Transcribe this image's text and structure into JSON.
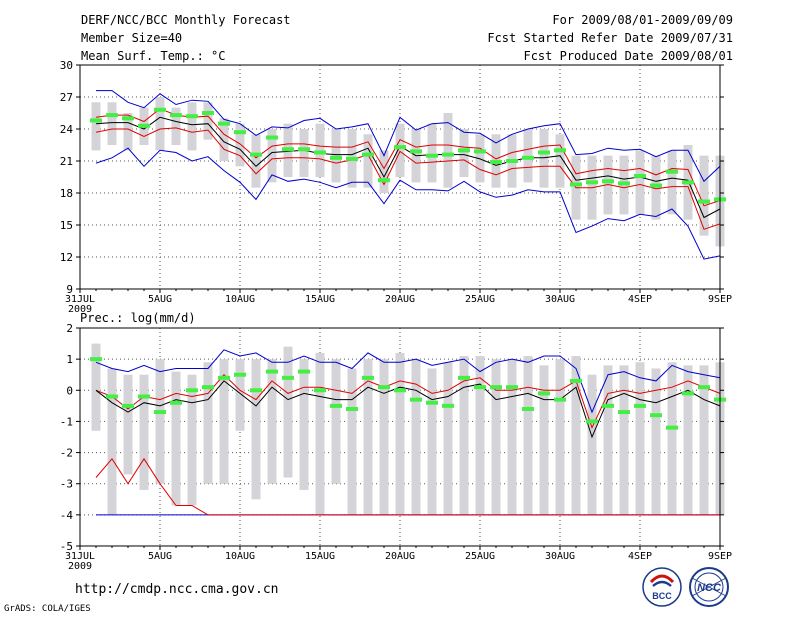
{
  "header": {
    "title": "DERF/NCC/BCC Monthly Forecast",
    "member_size": "Member Size=40",
    "variable": "Mean Surf. Temp.: °C",
    "period": "For 2009/08/01-2009/09/09",
    "started": "Fcst Started Refer Date 2009/07/31",
    "produced": "Fcst Produced Date 2009/08/01"
  },
  "footer": {
    "url": "http://cmdp.ncc.cma.gov.cn",
    "credit": "GrADS: COLA/IGES",
    "logo_bcc": "BCC",
    "logo_ncc": "NCC"
  },
  "colors": {
    "box": "#d4d4d8",
    "mean": "#000000",
    "spread": "#e00000",
    "extreme": "#0000cc",
    "obs": "#44ee44",
    "grid": "#555555"
  },
  "chart_data": [
    {
      "type": "line",
      "name": "temperature",
      "title": "",
      "ylabel": "Mean Surf. Temp.: °C",
      "ylim": [
        9,
        30
      ],
      "yticks": [
        9,
        12,
        15,
        18,
        21,
        24,
        27,
        30
      ],
      "xlim": [
        0,
        40
      ],
      "xticks": [
        0,
        5,
        10,
        15,
        20,
        25,
        30,
        35,
        40
      ],
      "xtick_labels": [
        "31JUL",
        "5AUG",
        "10AUG",
        "15AUG",
        "20AUG",
        "25AUG",
        "30AUG",
        "4SEP",
        "9SEP"
      ],
      "year_label": "2009",
      "x": [
        1,
        2,
        3,
        4,
        5,
        6,
        7,
        8,
        9,
        10,
        11,
        12,
        13,
        14,
        15,
        16,
        17,
        18,
        19,
        20,
        21,
        22,
        23,
        24,
        25,
        26,
        27,
        28,
        29,
        30,
        31,
        32,
        33,
        34,
        35,
        36,
        37,
        38,
        39,
        40
      ],
      "series": [
        {
          "name": "box_top",
          "values": [
            26.5,
            26.5,
            25.5,
            26,
            27,
            26,
            26.5,
            26.5,
            25,
            24.5,
            23.5,
            24,
            24.5,
            24,
            24.5,
            24,
            24,
            23.5,
            22,
            24.5,
            24,
            24.5,
            25.5,
            24,
            23.5,
            23.5,
            23.5,
            24,
            24,
            23.5,
            21.5,
            21.5,
            21.5,
            21.5,
            22,
            21.5,
            22,
            22.5,
            21.5,
            21.5
          ]
        },
        {
          "name": "box_bottom",
          "values": [
            22,
            22.5,
            22,
            22.5,
            22,
            22.5,
            22,
            23,
            21,
            20.5,
            18.5,
            19,
            19.5,
            19.5,
            19.5,
            19,
            18.5,
            18.5,
            18,
            19.5,
            19,
            19,
            18.5,
            19.5,
            19,
            18.5,
            18.5,
            19,
            18.5,
            18.5,
            15.5,
            15.5,
            16,
            16,
            16,
            15.5,
            16,
            15.5,
            14,
            13
          ]
        },
        {
          "name": "max",
          "values": [
            27.6,
            27.6,
            26.5,
            26,
            27.3,
            26.3,
            26.7,
            26.6,
            24.9,
            24.5,
            23.4,
            24.2,
            24.1,
            24.8,
            25.0,
            24,
            24.2,
            24.5,
            21.5,
            25.1,
            23.9,
            24.5,
            24.6,
            23.7,
            23.6,
            22.7,
            23.5,
            24.0,
            24.3,
            24.5,
            21.6,
            21.7,
            22.2,
            22.0,
            22.1,
            21.4,
            22.0,
            22.0,
            19.1,
            20.5
          ]
        },
        {
          "name": "upper",
          "values": [
            25.1,
            25.3,
            25.3,
            24.7,
            25.9,
            25.3,
            25.1,
            25.2,
            23.5,
            22.6,
            21.3,
            22.4,
            22.6,
            22.6,
            22.4,
            22.3,
            22.3,
            22.8,
            20.3,
            23.0,
            22.3,
            22.5,
            22.5,
            22.3,
            22.2,
            21.2,
            21.8,
            22.1,
            22.4,
            22.5,
            19.8,
            20.1,
            20.3,
            20.1,
            20.3,
            19.7,
            20.3,
            20.2,
            16.8,
            17.3
          ]
        },
        {
          "name": "mean",
          "values": [
            24.5,
            24.6,
            24.6,
            24.0,
            25.1,
            24.7,
            24.4,
            24.5,
            22.8,
            22.1,
            20.5,
            21.8,
            21.9,
            22.0,
            21.7,
            21.6,
            21.6,
            22.2,
            19.5,
            22.4,
            21.5,
            21.6,
            21.6,
            21.6,
            21.2,
            20.6,
            21.0,
            21.3,
            21.3,
            21.5,
            19.2,
            19.4,
            19.6,
            19.3,
            19.5,
            19.1,
            19.4,
            19.2,
            15.7,
            16.5
          ]
        },
        {
          "name": "lower",
          "values": [
            23.7,
            24.0,
            24.0,
            23.3,
            24.0,
            24.1,
            23.7,
            23.9,
            22.1,
            21.5,
            19.8,
            21.2,
            21.3,
            21.3,
            21.2,
            20.8,
            21.1,
            21.6,
            18.8,
            21.9,
            20.8,
            20.9,
            21.0,
            21.1,
            20.2,
            19.7,
            20.3,
            20.4,
            20.5,
            20.5,
            18.5,
            18.5,
            18.8,
            18.5,
            18.8,
            18.4,
            18.6,
            18.6,
            14.6,
            15.1
          ]
        },
        {
          "name": "min",
          "values": [
            20.8,
            21.3,
            22.2,
            20.5,
            22.0,
            21.8,
            21.0,
            21.4,
            20.1,
            19.0,
            17.4,
            19.7,
            19.1,
            19.3,
            19.0,
            18.5,
            19.0,
            19.0,
            17.0,
            19.2,
            18.3,
            18.3,
            18.2,
            19.1,
            18.1,
            17.6,
            17.8,
            18.3,
            18.1,
            18.1,
            14.3,
            14.9,
            15.6,
            15.4,
            16.0,
            15.8,
            16.5,
            14.9,
            11.8,
            12.1
          ]
        },
        {
          "name": "obs",
          "values": [
            24.8,
            25.3,
            25.0,
            24.3,
            25.8,
            25.3,
            25.2,
            25.5,
            24.5,
            23.7,
            21.6,
            23.2,
            22.1,
            22.1,
            21.8,
            21.3,
            21.2,
            21.6,
            19.2,
            22.3,
            21.9,
            21.5,
            21.6,
            22.0,
            21.9,
            20.9,
            21.0,
            21.3,
            21.8,
            22.0,
            18.8,
            19.0,
            19.1,
            18.9,
            19.6,
            18.7,
            20.0,
            19.0,
            17.2,
            17.4
          ]
        }
      ]
    },
    {
      "type": "line",
      "name": "precipitation",
      "title": "Prec.: log(mm/d)",
      "ylim": [
        -5,
        2
      ],
      "yticks": [
        -5,
        -4,
        -3,
        -2,
        -1,
        0,
        1,
        2
      ],
      "xlim": [
        0,
        40
      ],
      "xticks": [
        0,
        5,
        10,
        15,
        20,
        25,
        30,
        35,
        40
      ],
      "xtick_labels": [
        "31JUL",
        "5AUG",
        "10AUG",
        "15AUG",
        "20AUG",
        "25AUG",
        "30AUG",
        "4SEP",
        "9SEP"
      ],
      "year_label": "2009",
      "x": [
        1,
        2,
        3,
        4,
        5,
        6,
        7,
        8,
        9,
        10,
        11,
        12,
        13,
        14,
        15,
        16,
        17,
        18,
        19,
        20,
        21,
        22,
        23,
        24,
        25,
        26,
        27,
        28,
        29,
        30,
        31,
        32,
        33,
        34,
        35,
        36,
        37,
        38,
        39,
        40
      ],
      "series": [
        {
          "name": "box_top",
          "values": [
            1.5,
            0.7,
            0.5,
            0.5,
            1.0,
            0.6,
            0.5,
            0.9,
            1.0,
            1.0,
            1.0,
            1.0,
            1.4,
            1.0,
            1.2,
            1.0,
            0.7,
            1.0,
            1.0,
            1.2,
            1.0,
            0.7,
            0.9,
            1.1,
            1.1,
            1.0,
            1.0,
            1.1,
            0.8,
            1.0,
            1.1,
            0.5,
            0.8,
            0.8,
            0.9,
            0.7,
            0.9,
            0.8,
            0.8,
            0.9
          ]
        },
        {
          "name": "box_bottom",
          "values": [
            -1.3,
            -4.0,
            -2.7,
            -3.2,
            -3.0,
            -3.7,
            -3.7,
            -3.0,
            -3.0,
            -1.3,
            -3.5,
            -3.0,
            -2.8,
            -3.2,
            -4.0,
            -3.0,
            -4.0,
            -4.0,
            -4.0,
            -4.0,
            -4.0,
            -4.0,
            -4.0,
            -4.0,
            -4.0,
            -4.0,
            -4.0,
            -4.0,
            -4.0,
            -4.0,
            -4.0,
            -4.0,
            -4.0,
            -4.0,
            -4.0,
            -4.0,
            -4.0,
            -4.0,
            -4.0,
            -4.0
          ]
        },
        {
          "name": "max",
          "values": [
            0.9,
            0.7,
            0.6,
            0.8,
            0.6,
            0.7,
            0.7,
            0.7,
            1.3,
            1.1,
            1.2,
            0.9,
            0.9,
            1.1,
            0.9,
            0.9,
            0.7,
            1.2,
            0.9,
            0.9,
            1.0,
            0.8,
            0.9,
            1.0,
            0.6,
            0.9,
            1.0,
            0.9,
            1.1,
            1.1,
            0.7,
            -0.7,
            0.5,
            0.6,
            0.4,
            0.3,
            0.8,
            0.6,
            0.5,
            0.4
          ]
        },
        {
          "name": "upper",
          "values": [
            0.0,
            -0.2,
            -0.6,
            -0.2,
            -0.3,
            -0.1,
            -0.2,
            -0.1,
            0.5,
            0.0,
            -0.3,
            0.3,
            -0.1,
            0.1,
            0.1,
            0.0,
            -0.1,
            0.3,
            0.1,
            0.3,
            0.2,
            -0.1,
            0.0,
            0.3,
            0.4,
            0.0,
            0.0,
            0.1,
            0.0,
            0.0,
            0.3,
            -1.2,
            -0.1,
            0.0,
            -0.1,
            0.0,
            0.1,
            0.3,
            0.1,
            -0.1
          ]
        },
        {
          "name": "mean",
          "values": [
            0.0,
            -0.4,
            -0.7,
            -0.4,
            -0.5,
            -0.3,
            -0.4,
            -0.3,
            0.3,
            -0.1,
            -0.5,
            0.1,
            -0.3,
            -0.1,
            -0.2,
            -0.3,
            -0.3,
            0.1,
            -0.1,
            0.1,
            0.0,
            -0.3,
            -0.2,
            0.1,
            0.2,
            -0.3,
            -0.2,
            -0.1,
            -0.3,
            -0.3,
            0.1,
            -1.5,
            -0.3,
            -0.1,
            -0.3,
            -0.4,
            -0.2,
            0.0,
            -0.3,
            -0.5
          ]
        },
        {
          "name": "lower",
          "values": [
            -2.8,
            -2.2,
            -3.0,
            -2.2,
            -3.0,
            -3.7,
            -3.7,
            -4.0,
            -4.0,
            -4.0,
            -4.0,
            -4.0,
            -4.0,
            -4.0,
            -4.0,
            -4.0,
            -4.0,
            -4.0,
            -4.0,
            -4.0,
            -4.0,
            -4.0,
            -4.0,
            -4.0,
            -4.0,
            -4.0,
            -4.0,
            -4.0,
            -4.0,
            -4.0,
            -4.0,
            -4.0,
            -4.0,
            -4.0,
            -4.0,
            -4.0,
            -4.0,
            -4.0,
            -4.0,
            -4.0
          ]
        },
        {
          "name": "min",
          "values": [
            -4.0,
            -4.0,
            -4.0,
            -4.0,
            -4.0,
            -4.0,
            -4.0,
            -4.0,
            -4.0,
            -4.0,
            -4.0,
            -4.0,
            -4.0,
            -4.0,
            -4.0,
            -4.0,
            -4.0,
            -4.0,
            -4.0,
            -4.0,
            -4.0,
            -4.0,
            -4.0,
            -4.0,
            -4.0,
            -4.0,
            -4.0,
            -4.0,
            -4.0,
            -4.0,
            -4.0,
            -4.0,
            -4.0,
            -4.0,
            -4.0,
            -4.0,
            -4.0,
            -4.0,
            -4.0,
            -4.0
          ]
        },
        {
          "name": "obs",
          "values": [
            1.0,
            -0.2,
            -0.5,
            -0.2,
            -0.7,
            -0.4,
            0.0,
            0.1,
            0.4,
            0.5,
            0.0,
            0.6,
            0.4,
            0.6,
            0.0,
            -0.5,
            -0.6,
            0.4,
            0.1,
            0.0,
            -0.3,
            -0.4,
            -0.5,
            0.4,
            0.1,
            0.1,
            0.1,
            -0.6,
            -0.1,
            -0.3,
            0.3,
            -1.0,
            -0.5,
            -0.7,
            -0.5,
            -0.8,
            -1.2,
            -0.1,
            0.1,
            -0.3
          ]
        }
      ]
    }
  ]
}
